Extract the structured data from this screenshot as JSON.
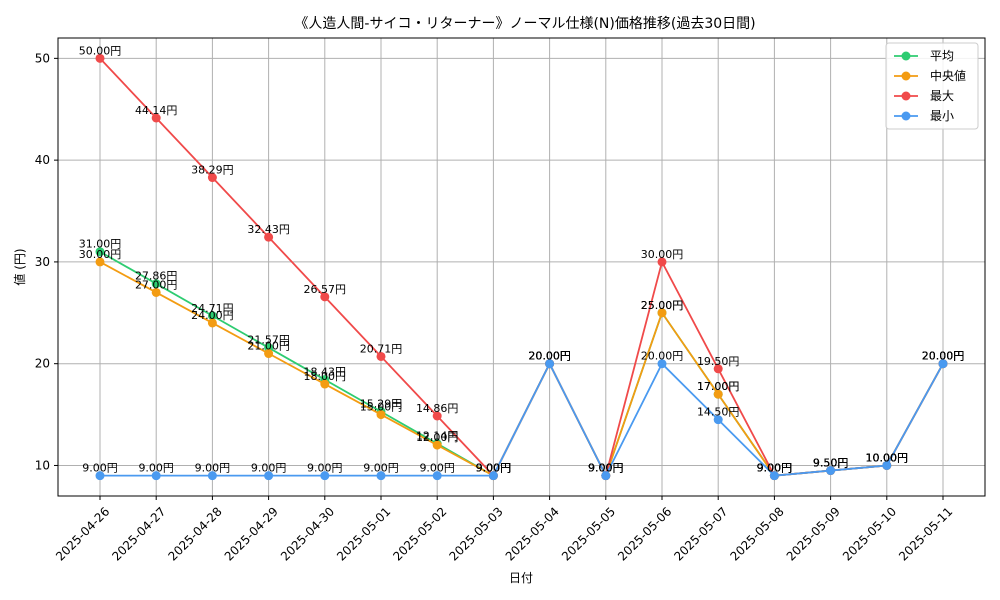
{
  "chart_data": {
    "type": "line",
    "title": "《人造人間-サイコ・リターナー》ノーマル仕様(N)価格推移(過去30日間)",
    "xlabel": "日付",
    "ylabel": "値 (円)",
    "ylim": [
      7,
      52
    ],
    "yticks": [
      10,
      20,
      30,
      40,
      50
    ],
    "grid": true,
    "legend_position": "top-right",
    "label_suffix": "円",
    "x": [
      "2025-04-26",
      "2025-04-27",
      "2025-04-28",
      "2025-04-29",
      "2025-04-30",
      "2025-05-01",
      "2025-05-02",
      "2025-05-03",
      "2025-05-04",
      "2025-05-05",
      "2025-05-06",
      "2025-05-07",
      "2025-05-08",
      "2025-05-09",
      "2025-05-10",
      "2025-05-11"
    ],
    "series": [
      {
        "name": "平均",
        "color": "#2ecc71",
        "values": [
          31.0,
          27.86,
          24.71,
          21.57,
          18.43,
          15.29,
          12.14,
          9.0,
          20.0,
          9.0,
          25.0,
          17.0,
          9.0,
          9.5,
          10.0,
          20.0
        ],
        "labels": [
          "31.00",
          "27.86",
          "24.71",
          "21.57",
          "18.43",
          "15.29",
          "12.14",
          "9.00",
          "20.00",
          "9.00",
          "25.00",
          "17.00",
          "9.00",
          "9.50",
          "10.00",
          "20.00"
        ]
      },
      {
        "name": "中央値",
        "color": "#f39c12",
        "values": [
          30.0,
          27.0,
          24.0,
          21.0,
          18.0,
          15.0,
          12.0,
          9.0,
          20.0,
          9.0,
          25.0,
          17.0,
          9.0,
          9.5,
          10.0,
          20.0
        ],
        "labels": [
          "30.00",
          "27.00",
          "24.00",
          "21.00",
          "18.00",
          "15.00",
          "12.00",
          "9.00",
          "20.00",
          "9.00",
          "25.00",
          "17.00",
          "9.00",
          "9.50",
          "10.00",
          "20.00"
        ]
      },
      {
        "name": "最大",
        "color": "#f04a4a",
        "values": [
          50.0,
          44.14,
          38.29,
          32.43,
          26.57,
          20.71,
          14.86,
          9.0,
          20.0,
          9.0,
          30.0,
          19.5,
          9.0,
          9.5,
          10.0,
          20.0
        ],
        "labels": [
          "50.00",
          "44.14",
          "38.29",
          "32.43",
          "26.57",
          "20.71",
          "14.86",
          "9.00",
          "20.00",
          "9.00",
          "30.00",
          "19.50",
          "9.00",
          "9.50",
          "10.00",
          "20.00"
        ]
      },
      {
        "name": "最小",
        "color": "#4a9af0",
        "values": [
          9.0,
          9.0,
          9.0,
          9.0,
          9.0,
          9.0,
          9.0,
          9.0,
          20.0,
          9.0,
          20.0,
          14.5,
          9.0,
          9.5,
          10.0,
          20.0
        ],
        "labels": [
          "9.00",
          "9.00",
          "9.00",
          "9.00",
          "9.00",
          "9.00",
          "9.00",
          "9.00",
          "20.00",
          "9.00",
          "20.00",
          "14.50",
          "9.00",
          "9.50",
          "10.00",
          "20.00"
        ]
      }
    ]
  }
}
